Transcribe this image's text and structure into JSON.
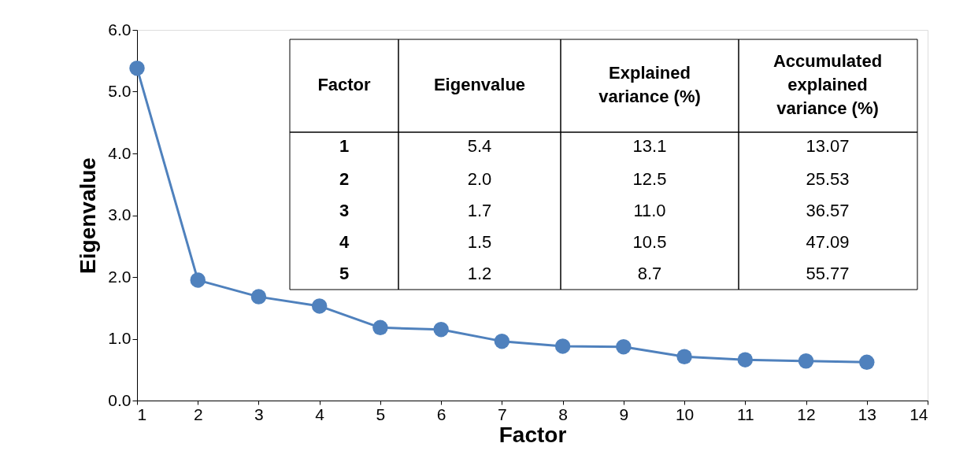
{
  "chart_data": {
    "type": "line",
    "xlabel": "Factor",
    "ylabel": "Eigenvalue",
    "x": [
      1,
      2,
      3,
      4,
      5,
      6,
      7,
      8,
      9,
      10,
      11,
      12,
      13
    ],
    "series": [
      {
        "color": "#4f81bd",
        "values": [
          5.38,
          1.95,
          1.68,
          1.53,
          1.18,
          1.15,
          0.96,
          0.88,
          0.87,
          0.71,
          0.66,
          0.64,
          0.62
        ]
      }
    ],
    "xlim": [
      1,
      14
    ],
    "xticks": [
      1,
      2,
      3,
      4,
      5,
      6,
      7,
      8,
      9,
      10,
      11,
      12,
      13,
      14
    ],
    "ylim": [
      0,
      6
    ],
    "yticks": [
      {
        "value": 0,
        "label": "0.0"
      },
      {
        "value": 1,
        "label": "1.0"
      },
      {
        "value": 2,
        "label": "2.0"
      },
      {
        "value": 3,
        "label": "3.0"
      },
      {
        "value": 4,
        "label": "4.0"
      },
      {
        "value": 5,
        "label": "5.0"
      },
      {
        "value": 6,
        "label": "6.0"
      }
    ],
    "grid": false,
    "marker": "circle",
    "line_style": "solid",
    "annotations": [
      "Factor",
      "Eigenvalue",
      "Explained\nvariance (%)",
      "Accumulated\nexplained\nvariance (%)",
      "1",
      "5.4",
      "13.1",
      "13.07",
      "2",
      "2.0",
      "12.5",
      "25.53",
      "3",
      "1.7",
      "11.0",
      "36.57",
      "4",
      "1.5",
      "10.5",
      "47.09",
      "5",
      "1.2",
      "8.7",
      "55.77"
    ]
  }
}
